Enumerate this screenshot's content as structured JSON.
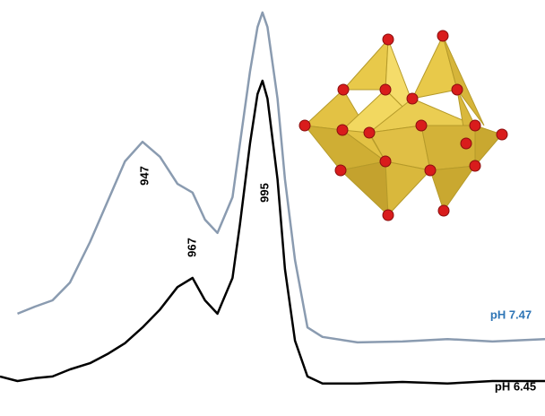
{
  "chart_data": {
    "type": "line",
    "x": [
      890,
      897,
      904,
      911,
      918,
      926,
      933,
      940,
      947,
      954,
      961,
      967,
      972,
      977,
      983,
      986,
      990,
      993,
      995,
      997,
      1001,
      1004,
      1008,
      1013,
      1019,
      1033,
      1051,
      1069,
      1087,
      1108
    ],
    "xlim": [
      890,
      1108
    ],
    "ylim": [
      0,
      100
    ],
    "series": [
      {
        "name": "pH 7.47",
        "color": "#8a9bb0",
        "label_color": "#2e75b6",
        "values": [
          null,
          24.6,
          26.3,
          27.8,
          32.1,
          41.8,
          51.5,
          61.2,
          65.9,
          62.3,
          55.8,
          53.7,
          47.2,
          44.0,
          52.6,
          65.5,
          82.8,
          93.5,
          97.0,
          93.5,
          76.3,
          56.9,
          37.5,
          21.3,
          19.0,
          17.7,
          17.9,
          18.5,
          17.9,
          18.5
        ]
      },
      {
        "name": "pH 6.45",
        "color": "#000000",
        "label_color": "#000000",
        "values": [
          9.5,
          8.4,
          9.1,
          9.5,
          11.2,
          12.7,
          14.9,
          17.5,
          21.3,
          25.6,
          31.0,
          33.2,
          27.8,
          24.6,
          33.2,
          46.1,
          65.5,
          77.4,
          80.6,
          76.3,
          56.9,
          35.3,
          18.1,
          9.5,
          7.8,
          7.8,
          8.2,
          7.8,
          8.4,
          8.4
        ]
      }
    ],
    "annotations": [
      "947",
      "967",
      "995"
    ]
  }
}
